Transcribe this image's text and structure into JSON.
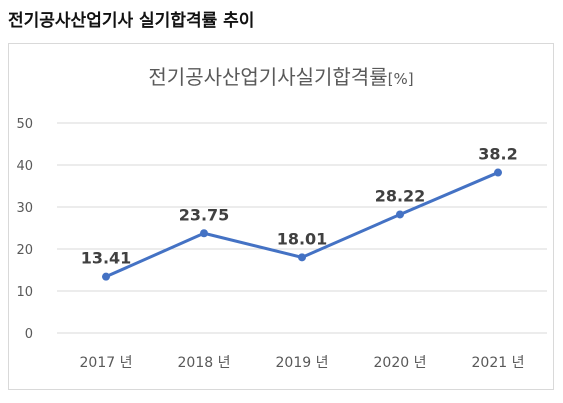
{
  "heading": "전기공사산업기사 실기합격률 추이",
  "colors": {
    "line": "#4472c4",
    "grid": "#d9d9d9"
  },
  "chart_data": {
    "type": "line",
    "title": "전기공사산업기사실기합격률",
    "title_unit": "[%]",
    "categories": [
      "2017 년",
      "2018 년",
      "2019 년",
      "2020 년",
      "2021 년"
    ],
    "series": [
      {
        "values": [
          13.41,
          23.75,
          18.01,
          28.22,
          38.2
        ]
      }
    ],
    "data_labels": [
      "13.41",
      "23.75",
      "18.01",
      "28.22",
      "38.2"
    ],
    "ylim": [
      0,
      50
    ],
    "yticks": [
      0,
      10,
      20,
      30,
      40,
      50
    ],
    "grid": true,
    "legend": "none"
  }
}
